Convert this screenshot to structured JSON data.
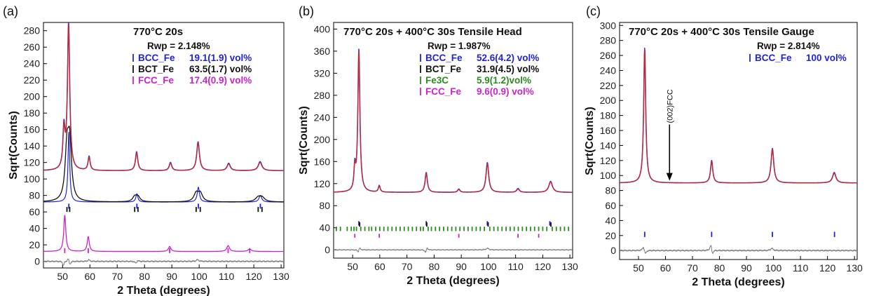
{
  "figure": {
    "panel_labels": [
      "(a)",
      "(b)",
      "(c)"
    ]
  },
  "colors": {
    "observed": "#3a3ad8",
    "calculated": "#c62828",
    "BCC_Fe": "#2222dd",
    "BCT_Fe": "#111111",
    "FCC_Fe": "#cc22cc",
    "Fe3C": "#2e8b22",
    "difference": "#777777"
  },
  "chart_data": [
    {
      "type": "line",
      "title": "770°C 20s",
      "rwp": "Rwp = 2.148%",
      "xlabel": "2 Theta (degrees)",
      "ylabel": "Sqrt(Counts)",
      "xlim": [
        43,
        131
      ],
      "ylim": [
        -8,
        290
      ],
      "xticks": [
        50,
        60,
        70,
        80,
        90,
        100,
        110,
        120,
        130
      ],
      "yticks": [
        0,
        20,
        40,
        60,
        80,
        100,
        120,
        140,
        160,
        180,
        200,
        220,
        240,
        260,
        280
      ],
      "grid": false,
      "legend_position": "top-right",
      "legend": [
        {
          "phase": "BCC_Fe",
          "value": "19.1(1.9) vol%",
          "color": "#2222dd"
        },
        {
          "phase": "BCT_Fe",
          "value": "63.5(1.7) vol%",
          "color": "#111111"
        },
        {
          "phase": "FCC_Fe",
          "value": "17.4(0.9) vol%",
          "color": "#cc22cc"
        }
      ],
      "profiles": [
        {
          "role": "observed",
          "color": "#3a3ad8",
          "width": 1.6,
          "baseline": 110,
          "peaks": [
            [
              50.5,
              48,
              0.45
            ],
            [
              52.2,
              178,
              0.5
            ],
            [
              59.7,
              17,
              0.45
            ],
            [
              77.1,
              23,
              0.5
            ],
            [
              89.5,
              10,
              0.55
            ],
            [
              99.6,
              35,
              0.6
            ],
            [
              110.8,
              9,
              0.7
            ],
            [
              122.3,
              11,
              0.8
            ]
          ]
        },
        {
          "role": "calculated",
          "color": "#c62828",
          "width": 1.3,
          "baseline": 110,
          "peaks": [
            [
              50.5,
              46,
              0.45
            ],
            [
              52.2,
              175,
              0.5
            ],
            [
              59.7,
              16,
              0.45
            ],
            [
              77.1,
              22,
              0.5
            ],
            [
              89.5,
              9,
              0.55
            ],
            [
              99.6,
              34,
              0.6
            ],
            [
              110.8,
              8,
              0.7
            ],
            [
              122.3,
              10,
              0.8
            ]
          ]
        },
        {
          "role": "BCC_Fe",
          "color": "#2222dd",
          "width": 1.2,
          "baseline": 72,
          "peaks": [
            [
              52.3,
              85,
              0.38
            ],
            [
              77.2,
              10,
              0.45
            ],
            [
              99.7,
              18,
              0.5
            ],
            [
              122.4,
              8,
              0.6
            ]
          ]
        },
        {
          "role": "BCT_Fe",
          "color": "#111111",
          "width": 1.3,
          "baseline": 72,
          "peaks": [
            [
              51.6,
              60,
              0.8
            ],
            [
              52.6,
              66,
              0.8
            ],
            [
              76.4,
              6,
              0.9
            ],
            [
              77.6,
              6,
              0.9
            ],
            [
              98.9,
              10,
              1.0
            ],
            [
              100.4,
              10,
              1.0
            ],
            [
              121.6,
              5,
              1.2
            ],
            [
              123.0,
              5,
              1.2
            ]
          ]
        },
        {
          "role": "FCC_Fe",
          "color": "#cc22cc",
          "width": 1.3,
          "baseline": 12,
          "peaks": [
            [
              50.8,
              44,
              0.45
            ],
            [
              59.4,
              18,
              0.45
            ],
            [
              89.2,
              6,
              0.55
            ],
            [
              110.6,
              7,
              0.6
            ],
            [
              118.5,
              3,
              0.7
            ]
          ]
        },
        {
          "role": "difference",
          "color": "#777777",
          "width": 1.0,
          "baseline": 0,
          "noise": 0.9,
          "peaks": [
            [
              50.3,
              -5,
              0.3
            ],
            [
              52.0,
              4,
              0.3
            ],
            [
              52.7,
              -4,
              0.3
            ],
            [
              59.6,
              2,
              0.35
            ],
            [
              76.9,
              -3,
              0.4
            ],
            [
              77.4,
              2,
              0.4
            ],
            [
              99.4,
              2,
              0.5
            ]
          ]
        }
      ],
      "reflection_ticks": [
        {
          "phase": "BCC_Fe",
          "color": "#2222dd",
          "y_range": [
            64,
            70
          ],
          "positions": [
            52.3,
            77.2,
            99.7,
            122.4
          ]
        },
        {
          "phase": "BCT_Fe",
          "color": "#111111",
          "y_range": [
            60,
            66
          ],
          "positions": [
            51.6,
            52.6,
            76.4,
            77.6,
            98.9,
            100.4,
            121.6,
            123.0
          ]
        },
        {
          "phase": "FCC_Fe",
          "color": "#cc22cc",
          "y_range": [
            10,
            16
          ],
          "positions": [
            50.8,
            59.4,
            89.2,
            110.6,
            118.5
          ]
        }
      ],
      "annotations": []
    },
    {
      "type": "line",
      "title": "770°C 20s + 400°C 30s Tensile Head",
      "rwp": "Rwp = 1.987%",
      "xlabel": "2 Theta (degrees)",
      "ylabel": "Sqrt(Counts)",
      "xlim": [
        43,
        131
      ],
      "ylim": [
        -15,
        412
      ],
      "xticks": [
        50,
        60,
        70,
        80,
        90,
        100,
        110,
        120,
        130
      ],
      "yticks": [
        0,
        40,
        80,
        120,
        160,
        200,
        240,
        280,
        320,
        360,
        400
      ],
      "grid": false,
      "legend_position": "top-right",
      "legend": [
        {
          "phase": "BCC_Fe",
          "value": "52.6(4.2) vol%",
          "color": "#2222dd"
        },
        {
          "phase": "BCT_Fe",
          "value": "31.9(4.5) vol%",
          "color": "#111111"
        },
        {
          "phase": "Fe3C",
          "value": "5.9(1.2)vol%",
          "color": "#2e8b22"
        },
        {
          "phase": "FCC_Fe",
          "value": "9.6(0.9) vol%",
          "color": "#cc22cc"
        }
      ],
      "profiles": [
        {
          "role": "observed",
          "color": "#3a3ad8",
          "width": 1.6,
          "baseline": 104,
          "peaks": [
            [
              50.8,
              40,
              0.35
            ],
            [
              52.3,
              258,
              0.45
            ],
            [
              59.8,
              12,
              0.4
            ],
            [
              77.1,
              36,
              0.5
            ],
            [
              89.1,
              6,
              0.5
            ],
            [
              99.6,
              54,
              0.6
            ],
            [
              110.9,
              7,
              0.6
            ],
            [
              122.9,
              20,
              0.8
            ]
          ]
        },
        {
          "role": "calculated",
          "color": "#c62828",
          "width": 1.3,
          "baseline": 104,
          "peaks": [
            [
              50.8,
              38,
              0.35
            ],
            [
              52.3,
              255,
              0.45
            ],
            [
              59.8,
              11,
              0.4
            ],
            [
              77.1,
              35,
              0.5
            ],
            [
              89.1,
              5,
              0.5
            ],
            [
              99.6,
              52,
              0.6
            ],
            [
              110.9,
              6,
              0.6
            ],
            [
              122.9,
              19,
              0.8
            ]
          ]
        },
        {
          "role": "difference",
          "color": "#777777",
          "width": 1.0,
          "baseline": 0,
          "noise": 1.0,
          "peaks": [
            [
              52.0,
              -4,
              0.3
            ],
            [
              52.6,
              4,
              0.3
            ],
            [
              76.9,
              -6,
              0.35
            ],
            [
              77.4,
              5,
              0.35
            ],
            [
              99.6,
              3,
              0.5
            ]
          ]
        }
      ],
      "reflection_ticks": [
        {
          "phase": "BCC_Fe",
          "color": "#2222dd",
          "y_range": [
            44,
            52
          ],
          "positions": [
            52.3,
            77.1,
            99.6,
            122.6
          ]
        },
        {
          "phase": "BCT_Fe",
          "color": "#111111",
          "y_range": [
            42,
            50
          ],
          "positions": [
            52.6,
            77.3,
            99.9,
            123.0
          ]
        },
        {
          "phase": "Fe3C",
          "color": "#2e8b22",
          "y_range": [
            34,
            42
          ],
          "positions": [
            44.0,
            45.5,
            48.0,
            49.5,
            50.5,
            51.4,
            53.0,
            54.5,
            56.0,
            57.0,
            58.5,
            60.0,
            61.5,
            63.0,
            64.5,
            66.0,
            67.5,
            69.0,
            70.5,
            72.0,
            73.5,
            75.0,
            76.0,
            77.8,
            79.0,
            80.5,
            82.0,
            83.5,
            85.0,
            86.5,
            88.0,
            89.5,
            91.0,
            92.5,
            94.0,
            95.5,
            97.0,
            98.5,
            100.5,
            102.0,
            103.5,
            105.0,
            106.5,
            108.0,
            109.5,
            111.0,
            112.5,
            114.0,
            115.5,
            117.0,
            118.5,
            120.0,
            121.5,
            123.5,
            125.0,
            126.5,
            128.0,
            129.5
          ]
        },
        {
          "phase": "FCC_Fe",
          "color": "#cc22cc",
          "y_range": [
            22,
            29
          ],
          "positions": [
            50.8,
            59.8,
            89.1,
            110.9,
            118.5
          ]
        }
      ],
      "annotations": []
    },
    {
      "type": "line",
      "title": "770°C 20s + 400°C 30s Tensile Gauge",
      "rwp": "Rwp = 2.814%",
      "xlabel": "2 Theta (degrees)",
      "ylabel": "Sqrt(Counts)",
      "xlim": [
        43,
        131
      ],
      "ylim": [
        -12,
        304
      ],
      "xticks": [
        50,
        60,
        70,
        80,
        90,
        100,
        110,
        120,
        130
      ],
      "yticks": [
        0,
        20,
        40,
        60,
        80,
        100,
        120,
        140,
        160,
        180,
        200,
        220,
        240,
        260,
        280,
        300
      ],
      "grid": false,
      "legend_position": "top-right",
      "legend": [
        {
          "phase": "BCC_Fe",
          "value": "100 vol%",
          "color": "#2222dd"
        }
      ],
      "profiles": [
        {
          "role": "observed",
          "color": "#3a3ad8",
          "width": 1.6,
          "baseline": 90,
          "peaks": [
            [
              52.3,
              180,
              0.45
            ],
            [
              77.1,
              30,
              0.5
            ],
            [
              99.6,
              46,
              0.6
            ],
            [
              122.5,
              14,
              0.75
            ]
          ]
        },
        {
          "role": "calculated",
          "color": "#c62828",
          "width": 1.3,
          "baseline": 90,
          "peaks": [
            [
              52.3,
              178,
              0.45
            ],
            [
              77.1,
              29,
              0.5
            ],
            [
              99.6,
              45,
              0.6
            ],
            [
              122.5,
              13,
              0.75
            ]
          ]
        },
        {
          "role": "difference",
          "color": "#777777",
          "width": 1.0,
          "baseline": 0,
          "noise": 1.0,
          "peaks": [
            [
              51.8,
              5,
              0.4
            ],
            [
              52.6,
              -5,
              0.35
            ],
            [
              76.8,
              8,
              0.4
            ],
            [
              77.4,
              -6,
              0.35
            ],
            [
              99.4,
              3,
              0.5
            ]
          ]
        }
      ],
      "reflection_ticks": [
        {
          "phase": "BCC_Fe",
          "color": "#2222dd",
          "y_range": [
            18,
            25
          ],
          "positions": [
            52.3,
            77.1,
            99.6,
            122.6
          ]
        }
      ],
      "annotations": [
        {
          "text": "(002)FCC",
          "x": 61.5,
          "y_start": 168,
          "y_end": 94
        }
      ]
    }
  ]
}
